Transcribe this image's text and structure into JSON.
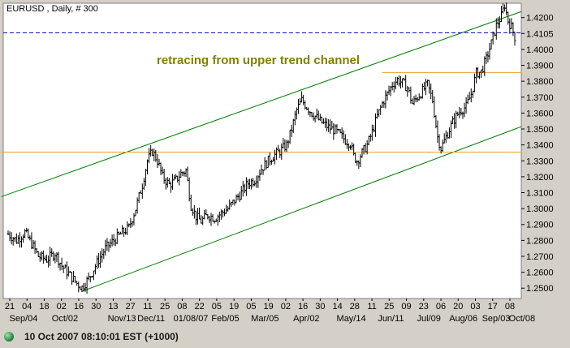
{
  "colors": {
    "background": "#d4d0c8",
    "plot_background": "#ffffff",
    "bars": "#000000",
    "trend_channel": "#008000",
    "horizontal_levels": "#e8a030",
    "current_price_line": "#0000cc",
    "annotation": "#808000",
    "status_dot": "#2e9e4a"
  },
  "status_bar": {
    "timestamp": "10 Oct 2007 08:10:01  EST (+1000)"
  },
  "chart_data": {
    "type": "ohlc",
    "title": "EURUSD , Daily, # 300",
    "annotation": "retracing from upper trend channel",
    "current_price_label": "1.4105",
    "current_price": 1.4105,
    "ylim": [
      1.244,
      1.4285
    ],
    "y_ticks": [
      1.25,
      1.26,
      1.27,
      1.28,
      1.29,
      1.3,
      1.31,
      1.32,
      1.33,
      1.34,
      1.35,
      1.36,
      1.37,
      1.38,
      1.39,
      1.4,
      1.41,
      1.42
    ],
    "y_tick_labels": [
      "1.2500",
      "1.2600",
      "1.2700",
      "1.2800",
      "1.2900",
      "1.3000",
      "1.3100",
      "1.3200",
      "1.3300",
      "1.3400",
      "1.3500",
      "1.3600",
      "1.3700",
      "1.3800",
      "1.3900",
      "1.4000",
      "1.4105",
      "1.4200"
    ],
    "x_day_labels": [
      "21",
      "04",
      "18",
      "02",
      "16",
      "30",
      "13",
      "27",
      "11",
      "25",
      "08",
      "22",
      "05",
      "19",
      "05",
      "19",
      "02",
      "16",
      "30",
      "14",
      "28",
      "11",
      "25",
      "09",
      "23",
      "06",
      "20",
      "03",
      "17",
      "08"
    ],
    "x_month_labels": [
      "Sep/04",
      "Oct/02",
      "Nov/13",
      "Dec/11",
      "01/08/07",
      "Feb/05",
      "Mar/05",
      "Apr/02",
      "May/14",
      "Jun/11",
      "Jul/09",
      "Aug/06",
      "Sep/03",
      "Oct/08"
    ],
    "price_path": [
      [
        0,
        1.284
      ],
      [
        5,
        1.28
      ],
      [
        10,
        1.285
      ],
      [
        14,
        1.278
      ],
      [
        18,
        1.27
      ],
      [
        23,
        1.268
      ],
      [
        28,
        1.272
      ],
      [
        32,
        1.264
      ],
      [
        37,
        1.258
      ],
      [
        41,
        1.253
      ],
      [
        44,
        1.2505
      ],
      [
        48,
        1.256
      ],
      [
        53,
        1.266
      ],
      [
        58,
        1.275
      ],
      [
        63,
        1.28
      ],
      [
        67,
        1.284
      ],
      [
        72,
        1.288
      ],
      [
        76,
        1.3
      ],
      [
        80,
        1.315
      ],
      [
        83,
        1.33
      ],
      [
        86,
        1.336
      ],
      [
        89,
        1.33
      ],
      [
        92,
        1.32
      ],
      [
        96,
        1.315
      ],
      [
        100,
        1.318
      ],
      [
        103,
        1.322
      ],
      [
        106,
        1.324
      ],
      [
        109,
        1.302
      ],
      [
        112,
        1.295
      ],
      [
        115,
        1.292
      ],
      [
        119,
        1.296
      ],
      [
        123,
        1.294
      ],
      [
        127,
        1.297
      ],
      [
        131,
        1.3
      ],
      [
        135,
        1.305
      ],
      [
        139,
        1.31
      ],
      [
        143,
        1.316
      ],
      [
        147,
        1.318
      ],
      [
        151,
        1.325
      ],
      [
        155,
        1.33
      ],
      [
        158,
        1.333
      ],
      [
        162,
        1.336
      ],
      [
        166,
        1.34
      ],
      [
        169,
        1.35
      ],
      [
        172,
        1.362
      ],
      [
        175,
        1.368
      ],
      [
        178,
        1.364
      ],
      [
        181,
        1.36
      ],
      [
        184,
        1.357
      ],
      [
        187,
        1.354
      ],
      [
        191,
        1.351
      ],
      [
        195,
        1.349
      ],
      [
        198,
        1.346
      ],
      [
        201,
        1.343
      ],
      [
        204,
        1.341
      ],
      [
        206,
        1.333
      ],
      [
        208,
        1.33
      ],
      [
        211,
        1.335
      ],
      [
        214,
        1.34
      ],
      [
        217,
        1.348
      ],
      [
        220,
        1.358
      ],
      [
        223,
        1.366
      ],
      [
        226,
        1.372
      ],
      [
        229,
        1.378
      ],
      [
        232,
        1.381
      ],
      [
        235,
        1.379
      ],
      [
        238,
        1.376
      ],
      [
        241,
        1.366
      ],
      [
        244,
        1.37
      ],
      [
        247,
        1.374
      ],
      [
        250,
        1.378
      ],
      [
        253,
        1.368
      ],
      [
        256,
        1.345
      ],
      [
        258,
        1.338
      ],
      [
        261,
        1.345
      ],
      [
        264,
        1.352
      ],
      [
        267,
        1.358
      ],
      [
        270,
        1.362
      ],
      [
        273,
        1.364
      ],
      [
        276,
        1.372
      ],
      [
        279,
        1.385
      ],
      [
        282,
        1.386
      ],
      [
        285,
        1.394
      ],
      [
        288,
        1.404
      ],
      [
        291,
        1.415
      ],
      [
        294,
        1.421
      ],
      [
        296,
        1.428
      ],
      [
        298,
        1.418
      ],
      [
        300,
        1.414
      ],
      [
        302,
        1.408
      ]
    ],
    "upper_channel": [
      [
        -4,
        1.3075
      ],
      [
        306,
        1.4238
      ]
    ],
    "lower_channel": [
      [
        44,
        1.248
      ],
      [
        306,
        1.3515
      ]
    ],
    "horizontal_levels": [
      {
        "price": 1.3355,
        "x_from": -4,
        "x_to": 306
      },
      {
        "price": 1.3855,
        "x_from": 223,
        "x_to": 306
      }
    ]
  }
}
